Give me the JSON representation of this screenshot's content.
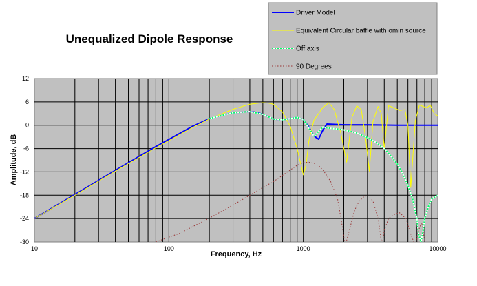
{
  "chart_data": {
    "type": "line",
    "title": "Unequalized Dipole Response",
    "xlabel": "Frequency, Hz",
    "ylabel": "Amplitude, dB",
    "x_scale": "log",
    "xlim": [
      10,
      10000
    ],
    "ylim": [
      -30,
      12
    ],
    "x_ticks": [
      "10",
      "100",
      "1000",
      "10000"
    ],
    "y_ticks": [
      "12",
      "6",
      "0",
      "-6",
      "-12",
      "-18",
      "-24",
      "-30"
    ],
    "grid": true,
    "legend_position": "top-right",
    "background": "#c0c0c0",
    "series": [
      {
        "name": "Driver Model",
        "color": "#0000ff",
        "style": "solid",
        "x": [
          10,
          20,
          40,
          80,
          150,
          200,
          300,
          400,
          450,
          500,
          600,
          700,
          800,
          900,
          1000,
          1100,
          1200,
          1300,
          1400,
          1500,
          2000,
          3000,
          5000,
          10000
        ],
        "y": [
          -24,
          -17.8,
          -11.6,
          -5.5,
          -0.3,
          1.7,
          3.2,
          3.5,
          3.3,
          2.8,
          1.6,
          1.4,
          1.7,
          2.0,
          1.5,
          -0.5,
          -2.8,
          -3.6,
          -1.2,
          0.3,
          0.1,
          0.1,
          0,
          0
        ]
      },
      {
        "name": "Equivalent Circular baffle with omin source",
        "color": "#ffff00",
        "style": "solid",
        "x": [
          10,
          20,
          40,
          80,
          150,
          200,
          300,
          400,
          500,
          550,
          600,
          700,
          800,
          900,
          1000,
          1050,
          1100,
          1200,
          1400,
          1550,
          1700,
          1900,
          2100,
          2300,
          2500,
          2700,
          2900,
          3100,
          3300,
          3600,
          3800,
          4000,
          4300,
          4700,
          5200,
          5700,
          6000,
          6300,
          6800,
          7300,
          7800,
          8300,
          8800,
          9400,
          10000
        ],
        "y": [
          -24,
          -18,
          -11.8,
          -5.8,
          -0.6,
          1.6,
          4.1,
          5.4,
          5.8,
          5.7,
          5.4,
          3.4,
          -0.3,
          -6.0,
          -12.8,
          -10.0,
          -4.0,
          1.3,
          4.6,
          5.8,
          4.0,
          -2.0,
          -9.5,
          2.0,
          5.0,
          4.0,
          -3.0,
          -11.8,
          1.0,
          4.8,
          3.0,
          -6.0,
          5.0,
          4.5,
          3.8,
          4.0,
          0.0,
          -16.0,
          1.0,
          5.2,
          4.8,
          4.5,
          5.2,
          3.0,
          2.4
        ]
      },
      {
        "name": "Off axis",
        "color": "#00ff66",
        "style": "dotted",
        "x": [
          200,
          300,
          400,
          500,
          600,
          700,
          800,
          900,
          1000,
          1200,
          1400,
          1600,
          1800,
          2000,
          2500,
          3000,
          3500,
          4000,
          4500,
          5000,
          5500,
          6000,
          6500,
          7000,
          7200,
          7500,
          7800,
          8000,
          8500,
          9000,
          10000
        ],
        "y": [
          1.7,
          3.2,
          3.5,
          2.8,
          1.6,
          1.4,
          1.7,
          2.0,
          1.5,
          -2.8,
          -0.5,
          -0.8,
          -1.0,
          -1.2,
          -2.0,
          -3.2,
          -4.5,
          -6.0,
          -8.0,
          -10.0,
          -12.5,
          -15.5,
          -19.0,
          -24.0,
          -28.0,
          -30.0,
          -27.0,
          -24.0,
          -21.0,
          -19.0,
          -18.0
        ]
      },
      {
        "name": "90 Degrees",
        "color": "#993333",
        "style": "dotted",
        "x": [
          80,
          120,
          200,
          300,
          400,
          500,
          600,
          700,
          800,
          900,
          1000,
          1100,
          1200,
          1300,
          1400,
          1600,
          1800,
          1950,
          2050,
          2200,
          2400,
          2600,
          2800,
          3000,
          3300,
          3600,
          3850,
          4000,
          4300,
          4700,
          5200,
          5800,
          6300,
          6800,
          7200,
          7600,
          8000
        ],
        "y": [
          -30,
          -27.8,
          -23.9,
          -20.5,
          -18,
          -16,
          -14.5,
          -12.9,
          -11.5,
          -10.3,
          -9.6,
          -9.5,
          -9.8,
          -10.4,
          -11.5,
          -14.5,
          -19.0,
          -26.0,
          -31.0,
          -27.0,
          -22.0,
          -19.5,
          -18.5,
          -18.0,
          -19.5,
          -24.0,
          -31.0,
          -27.0,
          -24.0,
          -23.0,
          -22.5,
          -24.0,
          -28.0,
          -31.0,
          -27.0,
          -25.0,
          -30.0
        ]
      }
    ]
  }
}
